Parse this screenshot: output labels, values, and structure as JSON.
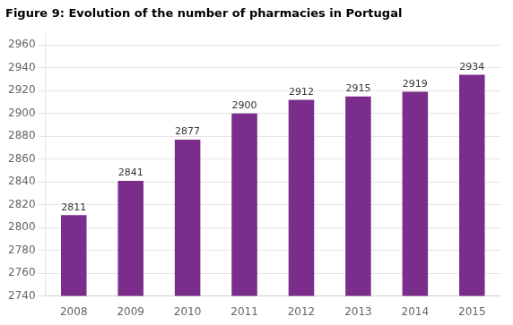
{
  "chart_data": {
    "type": "bar",
    "title": "Figure 9: Evolution of the number of pharmacies in Portugal",
    "categories": [
      "2008",
      "2009",
      "2010",
      "2011",
      "2012",
      "2013",
      "2014",
      "2015"
    ],
    "values": [
      2811,
      2841,
      2877,
      2900,
      2912,
      2915,
      2919,
      2934
    ],
    "color": "#7B2D8B",
    "ylim": [
      2740,
      2970
    ],
    "yticks": [
      2740,
      2760,
      2780,
      2800,
      2820,
      2840,
      2860,
      2880,
      2900,
      2920,
      2940,
      2960
    ],
    "grid": true,
    "data_labels": true
  }
}
